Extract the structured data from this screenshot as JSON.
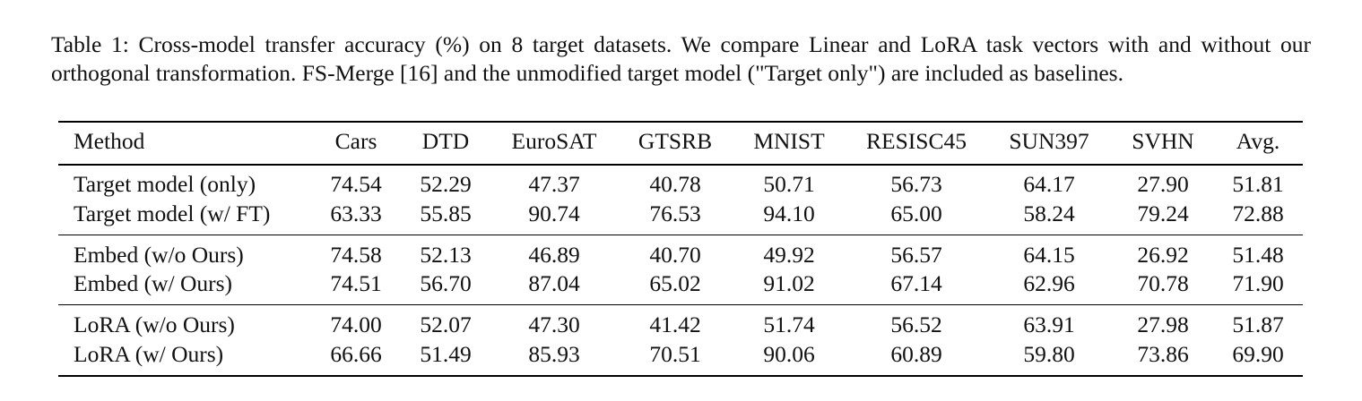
{
  "caption": "Table 1: Cross-model transfer accuracy (%) on 8 target datasets. We compare Linear and LoRA task vectors with and without our orthogonal transformation. FS-Merge [16] and the unmodified target model (\"Target only\") are included as baselines.",
  "table": {
    "header": [
      "Method",
      "Cars",
      "DTD",
      "EuroSAT",
      "GTSRB",
      "MNIST",
      "RESISC45",
      "SUN397",
      "SVHN",
      "Avg."
    ],
    "groups": [
      [
        [
          "Target model (only)",
          "74.54",
          "52.29",
          "47.37",
          "40.78",
          "50.71",
          "56.73",
          "64.17",
          "27.90",
          "51.81"
        ],
        [
          "Target model (w/ FT)",
          "63.33",
          "55.85",
          "90.74",
          "76.53",
          "94.10",
          "65.00",
          "58.24",
          "79.24",
          "72.88"
        ]
      ],
      [
        [
          "Embed (w/o Ours)",
          "74.58",
          "52.13",
          "46.89",
          "40.70",
          "49.92",
          "56.57",
          "64.15",
          "26.92",
          "51.48"
        ],
        [
          "Embed (w/ Ours)",
          "74.51",
          "56.70",
          "87.04",
          "65.02",
          "91.02",
          "67.14",
          "62.96",
          "70.78",
          "71.90"
        ]
      ],
      [
        [
          "LoRA (w/o Ours)",
          "74.00",
          "52.07",
          "47.30",
          "41.42",
          "51.74",
          "56.52",
          "63.91",
          "27.98",
          "51.87"
        ],
        [
          "LoRA (w/ Ours)",
          "66.66",
          "51.49",
          "85.93",
          "70.51",
          "90.06",
          "60.89",
          "59.80",
          "73.86",
          "69.90"
        ]
      ]
    ]
  }
}
